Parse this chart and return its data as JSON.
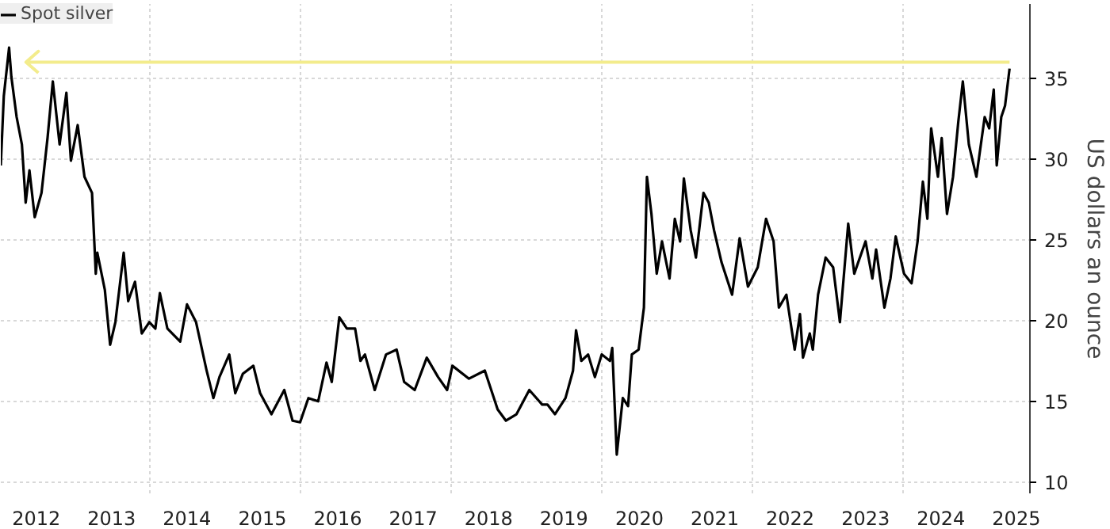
{
  "chart_data": {
    "type": "line",
    "ylabel": "US dollars an ounce",
    "legend": "top left",
    "grid": true,
    "line_style": "solid",
    "marker": "none",
    "xlim": [
      2012.03,
      2025.68
    ],
    "ylim": [
      9.3,
      39.6
    ],
    "xticks": [
      {
        "value": 2012.5,
        "label": "2012"
      },
      {
        "value": 2013.5,
        "label": "2013"
      },
      {
        "value": 2014,
        "label": null
      },
      {
        "value": 2014.5,
        "label": "2014"
      },
      {
        "value": 2015.5,
        "label": "2015"
      },
      {
        "value": 2016,
        "label": null
      },
      {
        "value": 2016.5,
        "label": "2016"
      },
      {
        "value": 2017.5,
        "label": "2017"
      },
      {
        "value": 2018,
        "label": null
      },
      {
        "value": 2018.5,
        "label": "2018"
      },
      {
        "value": 2019.5,
        "label": "2019"
      },
      {
        "value": 2020,
        "label": null
      },
      {
        "value": 2020.5,
        "label": "2020"
      },
      {
        "value": 2021.5,
        "label": "2021"
      },
      {
        "value": 2022,
        "label": null
      },
      {
        "value": 2022.5,
        "label": "2022"
      },
      {
        "value": 2023.5,
        "label": "2023"
      },
      {
        "value": 2024,
        "label": null
      },
      {
        "value": 2024.5,
        "label": "2024"
      },
      {
        "value": 2025.5,
        "label": "2025"
      }
    ],
    "yticks": [
      10,
      15,
      20,
      25,
      30,
      35
    ],
    "ref_lines": [
      {
        "axis": "y",
        "value": 36,
        "color": "#f3ec8c"
      }
    ],
    "x": [
      2012.03,
      2012.07,
      2012.14,
      2012.17,
      2012.24,
      2012.31,
      2012.36,
      2012.41,
      2012.48,
      2012.57,
      2012.65,
      2012.72,
      2012.81,
      2012.9,
      2012.96,
      2013.05,
      2013.14,
      2013.24,
      2013.29,
      2013.31,
      2013.41,
      2013.48,
      2013.55,
      2013.66,
      2013.72,
      2013.81,
      2013.9,
      2014.0,
      2014.08,
      2014.14,
      2014.24,
      2014.41,
      2014.5,
      2014.62,
      2014.76,
      2014.85,
      2014.93,
      2015.06,
      2015.14,
      2015.24,
      2015.38,
      2015.47,
      2015.62,
      2015.79,
      2015.9,
      2016.0,
      2016.11,
      2016.24,
      2016.35,
      2016.42,
      2016.52,
      2016.62,
      2016.73,
      2016.8,
      2016.86,
      2016.99,
      2017.14,
      2017.28,
      2017.38,
      2017.52,
      2017.68,
      2017.83,
      2017.95,
      2018.02,
      2018.24,
      2018.45,
      2018.62,
      2018.73,
      2018.87,
      2019.04,
      2019.21,
      2019.28,
      2019.38,
      2019.52,
      2019.62,
      2019.66,
      2019.73,
      2019.82,
      2019.91,
      2020.0,
      2020.11,
      2020.14,
      2020.2,
      2020.28,
      2020.35,
      2020.4,
      2020.49,
      2020.56,
      2020.6,
      2020.66,
      2020.73,
      2020.8,
      2020.9,
      2020.97,
      2021.04,
      2021.09,
      2021.18,
      2021.25,
      2021.35,
      2021.42,
      2021.49,
      2021.59,
      2021.73,
      2021.83,
      2021.94,
      2022.07,
      2022.18,
      2022.28,
      2022.35,
      2022.45,
      2022.56,
      2022.63,
      2022.67,
      2022.76,
      2022.8,
      2022.87,
      2022.97,
      2023.07,
      2023.16,
      2023.27,
      2023.35,
      2023.5,
      2023.59,
      2023.64,
      2023.75,
      2023.83,
      2023.9,
      2024.01,
      2024.11,
      2024.19,
      2024.26,
      2024.32,
      2024.37,
      2024.46,
      2024.51,
      2024.58,
      2024.66,
      2024.73,
      2024.79,
      2024.87,
      2024.97,
      2025.08,
      2025.14,
      2025.2,
      2025.24,
      2025.3,
      2025.35,
      2025.41
    ],
    "series": [
      {
        "name": "Spot silver",
        "color": "#000000",
        "values": [
          29.6,
          33.9,
          36.9,
          35.1,
          32.6,
          30.9,
          27.3,
          29.3,
          26.4,
          27.9,
          31.3,
          34.8,
          30.9,
          34.1,
          29.9,
          32.1,
          28.9,
          27.9,
          22.9,
          24.2,
          21.9,
          18.5,
          19.9,
          24.2,
          21.2,
          22.4,
          19.2,
          19.9,
          19.5,
          21.7,
          19.5,
          18.7,
          21.0,
          19.9,
          16.9,
          15.2,
          16.5,
          17.9,
          15.5,
          16.7,
          17.2,
          15.5,
          14.2,
          15.7,
          13.8,
          13.7,
          15.2,
          15.0,
          17.4,
          16.2,
          20.2,
          19.5,
          19.5,
          17.5,
          17.9,
          15.7,
          17.9,
          18.2,
          16.2,
          15.7,
          17.7,
          16.5,
          15.7,
          17.2,
          16.4,
          16.9,
          14.5,
          13.8,
          14.2,
          15.7,
          14.8,
          14.8,
          14.2,
          15.2,
          16.9,
          19.4,
          17.5,
          17.9,
          16.5,
          17.9,
          17.5,
          18.3,
          11.7,
          15.2,
          14.7,
          17.9,
          18.2,
          20.8,
          28.9,
          26.6,
          22.9,
          24.9,
          22.6,
          26.3,
          24.9,
          28.8,
          25.6,
          23.9,
          27.9,
          27.3,
          25.6,
          23.6,
          21.6,
          25.1,
          22.1,
          23.3,
          26.3,
          24.9,
          20.8,
          21.6,
          18.2,
          20.4,
          17.7,
          19.2,
          18.2,
          21.6,
          23.9,
          23.3,
          19.9,
          26.0,
          22.9,
          24.9,
          22.6,
          24.4,
          20.8,
          22.6,
          25.2,
          22.9,
          22.3,
          24.9,
          28.6,
          26.3,
          31.9,
          28.9,
          31.3,
          26.6,
          28.9,
          32.3,
          34.8,
          30.9,
          28.9,
          32.6,
          31.9,
          34.3,
          29.6,
          32.6,
          33.3,
          35.6
        ]
      }
    ]
  }
}
